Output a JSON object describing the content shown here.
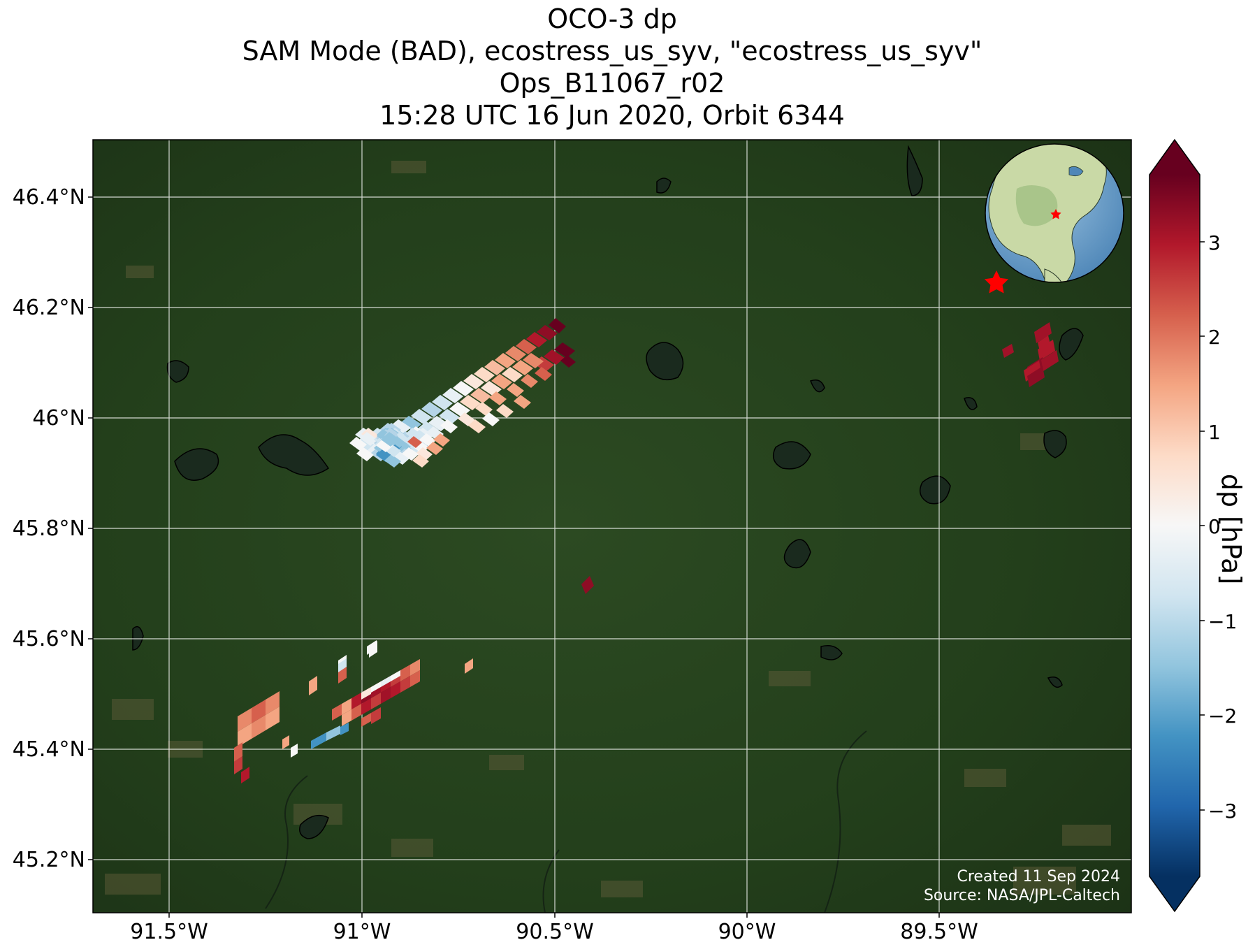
{
  "title": {
    "line1": "OCO-3 dp",
    "line2": "SAM Mode (BAD), ecostress_us_syv, \"ecostress_us_syv\"",
    "line3": "Ops_B11067_r02",
    "line4": "15:28 UTC 16 Jun 2020, Orbit 6344"
  },
  "map": {
    "lon_range": [
      -91.7,
      -89.0
    ],
    "lat_range": [
      45.1,
      46.5
    ],
    "lon_ticks": [
      "91.5°W",
      "91°W",
      "90.5°W",
      "90°W",
      "89.5°W"
    ],
    "lat_ticks": [
      "46.4°N",
      "46.2°N",
      "46°N",
      "45.8°N",
      "45.6°N",
      "45.4°N",
      "45.2°N"
    ],
    "basemap": "satellite imagery (forest, lakes, farmland)",
    "target_marker": {
      "icon": "red-star",
      "lon": -89.35,
      "lat": 46.24
    }
  },
  "colorbar": {
    "label": "dp [hPa]",
    "range": [
      -3.7,
      3.7
    ],
    "ticks": [
      "3",
      "2",
      "1",
      "0",
      "−1",
      "−2",
      "−3"
    ],
    "colormap": "RdBu_r",
    "extend": "both"
  },
  "inset_globe": {
    "icon": "globe-north-america",
    "marker": "red-star"
  },
  "credits": {
    "created": "Created 11 Sep 2024",
    "source": "Source: NASA/JPL-Caltech"
  },
  "soundings": {
    "note": "dp values per footprint (hPa), approximate",
    "north_swath": [
      {
        "lon": -90.52,
        "lat": 46.16,
        "dp": 3.2
      },
      {
        "lon": -90.56,
        "lat": 46.14,
        "dp": 2.9
      },
      {
        "lon": -90.6,
        "lat": 46.12,
        "dp": 2.4
      },
      {
        "lon": -90.64,
        "lat": 46.1,
        "dp": 1.8
      },
      {
        "lon": -90.68,
        "lat": 46.08,
        "dp": 1.2
      },
      {
        "lon": -90.74,
        "lat": 46.06,
        "dp": 0.6
      },
      {
        "lon": -90.8,
        "lat": 46.04,
        "dp": 0.1
      },
      {
        "lon": -90.86,
        "lat": 46.02,
        "dp": -0.4
      },
      {
        "lon": -90.92,
        "lat": 46.0,
        "dp": -0.8
      },
      {
        "lon": -90.98,
        "lat": 45.98,
        "dp": -0.5
      },
      {
        "lon": -90.9,
        "lat": 45.97,
        "dp": -1.3
      },
      {
        "lon": -90.85,
        "lat": 45.96,
        "dp": 2.0
      },
      {
        "lon": -90.78,
        "lat": 45.96,
        "dp": 1.1
      }
    ],
    "east_cluster": [
      {
        "lon": -89.25,
        "lat": 46.1,
        "dp": 3.6
      },
      {
        "lon": -89.2,
        "lat": 46.14,
        "dp": 3.4
      },
      {
        "lon": -89.33,
        "lat": 46.12,
        "dp": 3.3
      }
    ],
    "south_swath": [
      {
        "lon": -91.3,
        "lat": 45.45,
        "dp": 1.8
      },
      {
        "lon": -91.25,
        "lat": 45.47,
        "dp": 1.5
      },
      {
        "lon": -91.32,
        "lat": 45.38,
        "dp": 2.6
      },
      {
        "lon": -91.1,
        "lat": 45.44,
        "dp": -1.5
      },
      {
        "lon": -90.98,
        "lat": 45.48,
        "dp": 2.4
      },
      {
        "lon": -90.9,
        "lat": 45.5,
        "dp": 2.8
      },
      {
        "lon": -90.96,
        "lat": 45.53,
        "dp": 0.4
      },
      {
        "lon": -91.03,
        "lat": 45.58,
        "dp": -0.9
      },
      {
        "lon": -90.72,
        "lat": 45.55,
        "dp": 1.6
      },
      {
        "lon": -90.4,
        "lat": 45.7,
        "dp": 3.4
      }
    ]
  }
}
